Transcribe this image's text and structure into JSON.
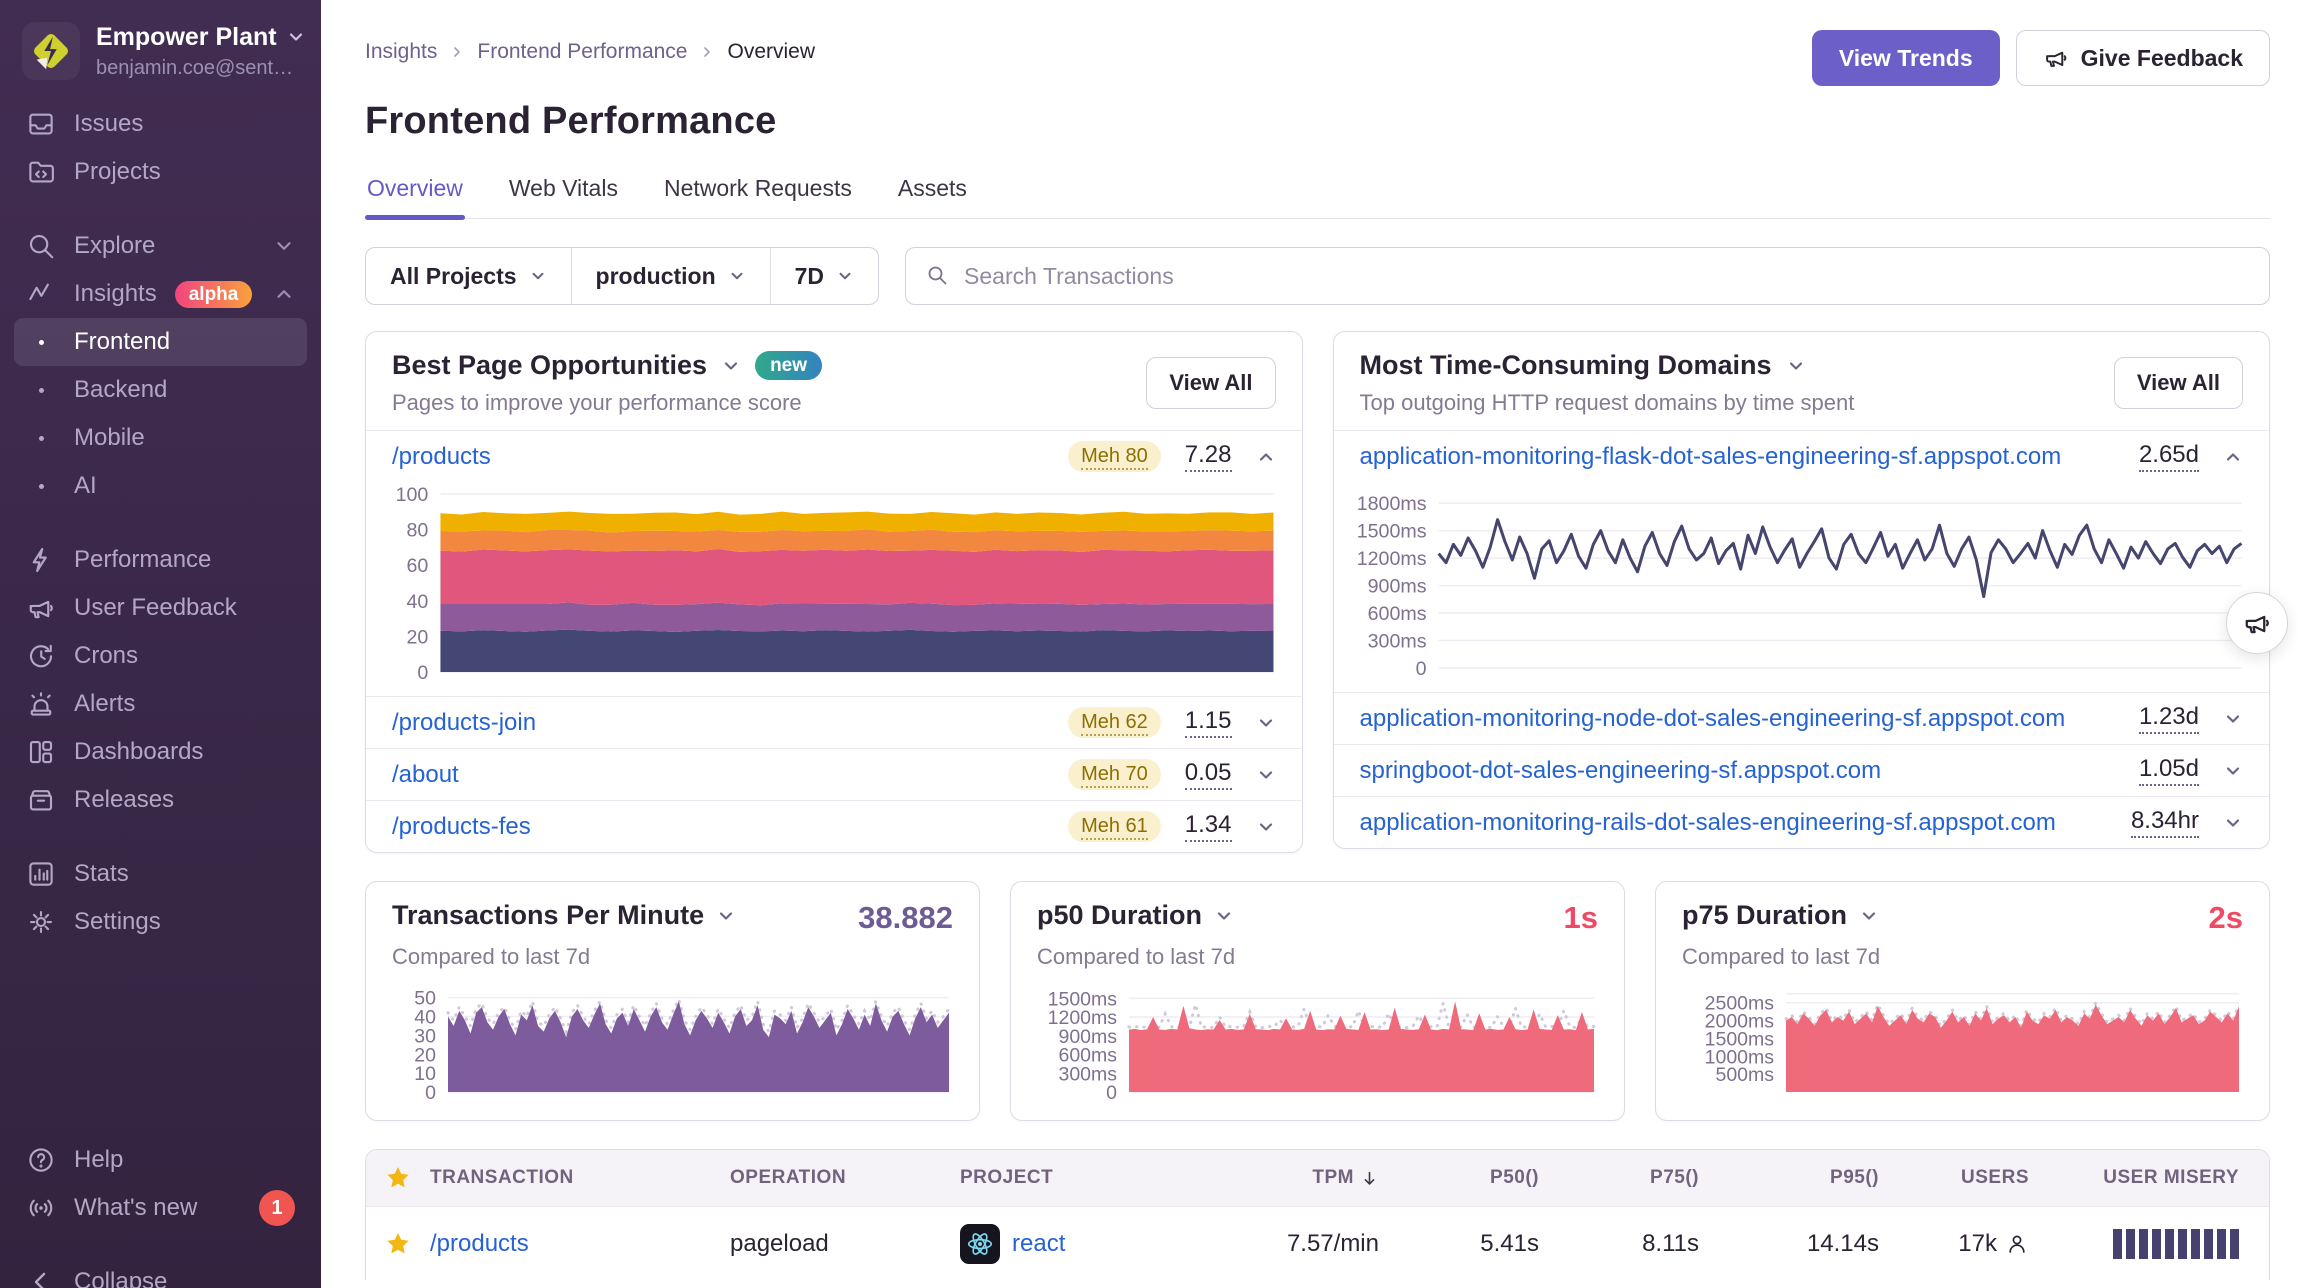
{
  "colors": {
    "accent_purple": "#6C5FC7",
    "link_blue": "#2562d4",
    "value_red": "#ef4965",
    "value_purple": "#6f5b93",
    "sidebar_bg": "#3a2a4b",
    "star_yellow": "#f2b712",
    "misery_bar": "#474170"
  },
  "sidebar": {
    "org": {
      "name": "Empower Plant",
      "email": "benjamin.coe@sent…"
    },
    "items": [
      {
        "label": "Issues"
      },
      {
        "label": "Projects"
      },
      {
        "label": "Explore"
      },
      {
        "label": "Insights",
        "badge": "alpha"
      },
      {
        "label": "Frontend"
      },
      {
        "label": "Backend"
      },
      {
        "label": "Mobile"
      },
      {
        "label": "AI"
      },
      {
        "label": "Performance"
      },
      {
        "label": "User Feedback"
      },
      {
        "label": "Crons"
      },
      {
        "label": "Alerts"
      },
      {
        "label": "Dashboards"
      },
      {
        "label": "Releases"
      },
      {
        "label": "Stats"
      },
      {
        "label": "Settings"
      }
    ],
    "footer": {
      "help": "Help",
      "whats_new": "What's new",
      "whats_new_count": "1",
      "collapse": "Collapse"
    }
  },
  "header": {
    "breadcrumb": [
      "Insights",
      "Frontend Performance",
      "Overview"
    ],
    "actions": {
      "view_trends": "View Trends",
      "give_feedback": "Give Feedback"
    },
    "title": "Frontend Performance"
  },
  "tabs": [
    {
      "label": "Overview"
    },
    {
      "label": "Web Vitals"
    },
    {
      "label": "Network Requests"
    },
    {
      "label": "Assets"
    }
  ],
  "filters": {
    "project": "All Projects",
    "environment": "production",
    "period": "7D",
    "search_placeholder": "Search Transactions"
  },
  "best_pages": {
    "title": "Best Page Opportunities",
    "badge": "new",
    "subtitle": "Pages to improve your performance score",
    "view_all": "View All",
    "rows": [
      {
        "page": "/products",
        "score_text": "Meh 80",
        "value": "7.28"
      },
      {
        "page": "/products-join",
        "score_text": "Meh 62",
        "value": "1.15"
      },
      {
        "page": "/about",
        "score_text": "Meh 70",
        "value": "0.05"
      },
      {
        "page": "/products-fes",
        "score_text": "Meh 61",
        "value": "1.34"
      }
    ]
  },
  "domains": {
    "title": "Most Time-Consuming Domains",
    "subtitle": "Top outgoing HTTP request domains by time spent",
    "view_all": "View All",
    "rows": [
      {
        "domain": "application-monitoring-flask-dot-sales-engineering-sf.appspot.com",
        "value": "2.65d"
      },
      {
        "domain": "application-monitoring-node-dot-sales-engineering-sf.appspot.com",
        "value": "1.23d"
      },
      {
        "domain": "springboot-dot-sales-engineering-sf.appspot.com",
        "value": "1.05d"
      },
      {
        "domain": "application-monitoring-rails-dot-sales-engineering-sf.appspot.com",
        "value": "8.34hr"
      }
    ]
  },
  "metrics": [
    {
      "title": "Transactions Per Minute",
      "value": "38.882",
      "subtitle": "Compared to last 7d"
    },
    {
      "title": "p50 Duration",
      "value": "1s",
      "subtitle": "Compared to last 7d"
    },
    {
      "title": "p75 Duration",
      "value": "2s",
      "subtitle": "Compared to last 7d"
    }
  ],
  "table": {
    "columns": {
      "transaction": "TRANSACTION",
      "operation": "OPERATION",
      "project": "PROJECT",
      "tpm": "TPM",
      "p50": "P50()",
      "p75": "P75()",
      "p95": "P95()",
      "users": "USERS",
      "user_misery": "USER MISERY"
    },
    "rows": [
      {
        "transaction": "/products",
        "operation": "pageload",
        "project": "react",
        "tpm": "7.57/min",
        "p50": "5.41s",
        "p75": "8.11s",
        "p95": "14.14s",
        "users": "17k",
        "misery_bars": 10
      }
    ]
  },
  "chart_data": {
    "page_score_stacked": {
      "type": "area",
      "stacked": true,
      "ylim": [
        0,
        100
      ],
      "yticks": [
        [
          0,
          "0"
        ],
        [
          20,
          "20"
        ],
        [
          40,
          "40"
        ],
        [
          60,
          "60"
        ],
        [
          80,
          "80"
        ],
        [
          100,
          "100"
        ]
      ],
      "series": [
        {
          "name": "band-1",
          "color": "#444674",
          "values": [
            23.2,
            22.8,
            23.5,
            23.0,
            22.6,
            23.3,
            23.8,
            23.1,
            22.7,
            23.4,
            23.0,
            22.5,
            23.2,
            23.6,
            23.0,
            22.8,
            23.3,
            22.9,
            23.5,
            23.1,
            22.7,
            23.2,
            23.7,
            23.0,
            22.6,
            23.1,
            23.4,
            22.9,
            23.3,
            23.0,
            22.7,
            23.5,
            23.1,
            22.8,
            23.4,
            23.0,
            23.3,
            22.9,
            23.2,
            23.0
          ]
        },
        {
          "name": "band-2",
          "color": "#8e5a9a",
          "values": [
            15.0,
            15.4,
            14.7,
            15.2,
            15.6,
            14.9,
            15.3,
            14.6,
            15.1,
            15.5,
            14.8,
            15.2,
            14.9,
            15.4,
            15.0,
            14.7,
            15.3,
            15.6,
            14.9,
            15.2,
            15.5,
            14.8,
            15.1,
            15.4,
            15.0,
            14.6,
            15.2,
            15.5,
            14.9,
            15.3,
            15.0,
            14.7,
            15.4,
            15.1,
            14.8,
            15.3,
            15.0,
            15.4,
            14.9,
            15.2
          ]
        },
        {
          "name": "band-3",
          "color": "#e1567c",
          "values": [
            30.0,
            29.4,
            30.6,
            30.1,
            29.6,
            30.3,
            29.8,
            30.5,
            29.9,
            29.3,
            30.2,
            30.7,
            29.7,
            30.1,
            29.5,
            30.4,
            30.0,
            29.6,
            30.3,
            29.8,
            30.6,
            30.0,
            29.4,
            30.2,
            30.5,
            29.8,
            30.1,
            29.5,
            30.3,
            30.0,
            29.7,
            30.4,
            29.9,
            30.2,
            29.6,
            30.1,
            30.4,
            29.8,
            30.0,
            30.2
          ]
        },
        {
          "name": "band-4",
          "color": "#f2883f",
          "values": [
            11.0,
            11.4,
            10.7,
            11.1,
            10.8,
            11.3,
            10.9,
            11.2,
            10.6,
            11.0,
            11.4,
            10.8,
            11.1,
            10.7,
            11.3,
            10.9,
            11.2,
            11.0,
            10.6,
            11.1,
            11.4,
            10.8,
            11.0,
            11.3,
            10.7,
            11.1,
            10.9,
            11.2,
            10.8,
            11.0,
            11.3,
            10.7,
            11.1,
            10.9,
            11.2,
            10.8,
            11.0,
            11.3,
            10.9,
            11.1
          ]
        },
        {
          "name": "band-5",
          "color": "#efb000",
          "values": [
            10.0,
            9.5,
            10.4,
            9.8,
            10.2,
            9.6,
            10.3,
            9.9,
            10.5,
            9.7,
            10.1,
            10.4,
            9.8,
            10.2,
            9.6,
            10.0,
            10.3,
            9.7,
            10.1,
            10.5,
            9.9,
            10.2,
            9.6,
            10.0,
            10.4,
            9.8,
            10.1,
            9.7,
            10.3,
            10.0,
            9.8,
            10.2,
            10.5,
            9.9,
            10.1,
            9.7,
            10.0,
            10.3,
            9.8,
            10.1
          ]
        }
      ]
    },
    "domain_duration": {
      "type": "line",
      "color": "#46456f",
      "ylim": [
        0,
        1900
      ],
      "yticks": [
        [
          0,
          "0"
        ],
        [
          300,
          "300ms"
        ],
        [
          600,
          "600ms"
        ],
        [
          900,
          "900ms"
        ],
        [
          1200,
          "1200ms"
        ],
        [
          1500,
          "1500ms"
        ],
        [
          1800,
          "1800ms"
        ]
      ],
      "values": [
        1250,
        1150,
        1350,
        1230,
        1420,
        1280,
        1100,
        1320,
        1620,
        1380,
        1180,
        1430,
        1250,
        980,
        1300,
        1390,
        1150,
        1280,
        1460,
        1220,
        1090,
        1350,
        1500,
        1280,
        1150,
        1400,
        1200,
        1050,
        1330,
        1480,
        1250,
        1120,
        1380,
        1550,
        1300,
        1180,
        1250,
        1420,
        1140,
        1280,
        1360,
        1080,
        1450,
        1250,
        1540,
        1320,
        1150,
        1290,
        1410,
        1100,
        1250,
        1380,
        1520,
        1200,
        1080,
        1350,
        1460,
        1250,
        1150,
        1310,
        1480,
        1220,
        1350,
        1090,
        1250,
        1400,
        1180,
        1300,
        1560,
        1250,
        1110,
        1300,
        1430,
        1180,
        780,
        1260,
        1400,
        1300,
        1150,
        1250,
        1360,
        1200,
        1500,
        1280,
        1100,
        1350,
        1240,
        1450,
        1560,
        1300,
        1150,
        1400,
        1250,
        1090,
        1320,
        1200,
        1380,
        1250,
        1140,
        1300,
        1360,
        1210,
        1100,
        1280,
        1350,
        1250,
        1330,
        1150,
        1300,
        1360
      ]
    },
    "tpm": {
      "type": "area",
      "color": "#7d5b9d",
      "ylim": [
        0,
        53
      ],
      "yticks": [
        [
          0,
          "0"
        ],
        [
          10,
          "10"
        ],
        [
          20,
          "20"
        ],
        [
          30,
          "30"
        ],
        [
          40,
          "40"
        ],
        [
          50,
          "50"
        ]
      ],
      "values": [
        40,
        35,
        43,
        38,
        31,
        42,
        45,
        37,
        33,
        40,
        44,
        36,
        30,
        41,
        38,
        46,
        35,
        32,
        39,
        43,
        37,
        29,
        40,
        44,
        38,
        34,
        41,
        47,
        36,
        31,
        39,
        42,
        35,
        44,
        38,
        32,
        40,
        45,
        37,
        33,
        41,
        48,
        36,
        30,
        38,
        43,
        39,
        34,
        42,
        37,
        31,
        40,
        44,
        35,
        38,
        46,
        33,
        29,
        41,
        39,
        36,
        43,
        31,
        37,
        45,
        40,
        34,
        38,
        42,
        30,
        36,
        44,
        39,
        33,
        41,
        35,
        47,
        38,
        32,
        40,
        43,
        36,
        30,
        39,
        45,
        37,
        41,
        34,
        38,
        42
      ],
      "prev_values": [
        42,
        38,
        45,
        40,
        35,
        44,
        47,
        39,
        36,
        42,
        45,
        38,
        33,
        43,
        40,
        48,
        37,
        35,
        41,
        45,
        39,
        32,
        42,
        46,
        40,
        36,
        43,
        48,
        38,
        34,
        41,
        44,
        37,
        46,
        40,
        35,
        42,
        47,
        39,
        36,
        43,
        49,
        38,
        33,
        40,
        45,
        41,
        36,
        44,
        39,
        34,
        42,
        46,
        38,
        40,
        48,
        36,
        32,
        43,
        41,
        38,
        45,
        34,
        39,
        47,
        42,
        37,
        40,
        44,
        33,
        38,
        46,
        41,
        36,
        43,
        38,
        48,
        40,
        35,
        42,
        45,
        38,
        33,
        41,
        47,
        39,
        43,
        37,
        40,
        44
      ]
    },
    "p50": {
      "type": "area",
      "color": "#ef6a7b",
      "ylim": [
        0,
        1600
      ],
      "yticks": [
        [
          0,
          "0"
        ],
        [
          300,
          "300ms"
        ],
        [
          600,
          "600ms"
        ],
        [
          900,
          "900ms"
        ],
        [
          1200,
          "1200ms"
        ],
        [
          1500,
          "1500ms"
        ]
      ],
      "values": [
        1000,
        1010,
        990,
        1005,
        1200,
        1000,
        995,
        1010,
        1000,
        1380,
        1020,
        1000,
        990,
        1005,
        1000,
        1150,
        1000,
        1010,
        995,
        1000,
        1250,
        1005,
        1000,
        990,
        1010,
        1000,
        1180,
        1000,
        995,
        1010,
        1300,
        1000,
        990,
        1005,
        1000,
        1220,
        1010,
        1000,
        995,
        1280,
        1000,
        1005,
        990,
        1000,
        1350,
        1010,
        1000,
        995,
        1005,
        1240,
        1000,
        990,
        1010,
        1000,
        1450,
        1005,
        1000,
        990,
        1260,
        1000,
        1010,
        995,
        1000,
        1200,
        1005,
        990,
        1000,
        1320,
        1010,
        1000,
        995,
        1230,
        1000,
        1005,
        990,
        1280,
        1000,
        1010
      ],
      "prev_values": [
        1040,
        1050,
        1030,
        1045,
        1060,
        1035,
        1250,
        1045,
        1030,
        1050,
        1040,
        1400,
        1035,
        1045,
        1030,
        1200,
        1040,
        1050,
        1035,
        1045,
        1280,
        1040,
        1030,
        1050,
        1045,
        1150,
        1035,
        1040,
        1050,
        1330,
        1030,
        1045,
        1040,
        1230,
        1050,
        1035,
        1045,
        1040,
        1300,
        1030,
        1050,
        1040,
        1035,
        1260,
        1045,
        1040,
        1030,
        1050,
        1220,
        1035,
        1045,
        1040,
        1420,
        1030,
        1050,
        1040,
        1240,
        1035,
        1045,
        1040,
        1030,
        1210,
        1050,
        1040,
        1340,
        1035,
        1045,
        1030,
        1250,
        1040,
        1050,
        1035,
        1300,
        1045,
        1030,
        1190,
        1040,
        1050
      ]
    },
    "p75": {
      "type": "area",
      "color": "#ef6a7b",
      "ylim": [
        0,
        2800
      ],
      "yticks": [
        [
          500,
          "500ms"
        ],
        [
          1000,
          "1000ms"
        ],
        [
          1500,
          "1500ms"
        ],
        [
          2000,
          "2000ms"
        ],
        [
          2500,
          "2500ms"
        ],
        [
          2750,
          ""
        ]
      ],
      "values": [
        2000,
        2100,
        1900,
        2200,
        2050,
        1850,
        2150,
        2300,
        1950,
        2100,
        2000,
        2250,
        1900,
        2050,
        2200,
        1950,
        2400,
        2100,
        1850,
        2000,
        2150,
        1900,
        2300,
        2050,
        1950,
        2200,
        2100,
        1800,
        2000,
        2250,
        1950,
        2100,
        1850,
        2200,
        2000,
        2350,
        1900,
        2050,
        2150,
        1950,
        2100,
        1800,
        2250,
        2000,
        1900,
        2150,
        2050,
        2300,
        1950,
        2100,
        2000,
        1850,
        2200,
        2050,
        2450,
        2150,
        1900,
        2000,
        2100,
        1950,
        2300,
        2050,
        1850,
        2150,
        2000,
        2200,
        1900,
        2100,
        2350,
        1950,
        2050,
        2150,
        1900,
        2000,
        2250,
        2100,
        1950,
        2200,
        2000,
        2400
      ],
      "prev_values": [
        2050,
        2150,
        1950,
        2250,
        2100,
        1900,
        2200,
        2350,
        2000,
        2150,
        2050,
        2300,
        1950,
        2100,
        2250,
        2000,
        2450,
        2150,
        1900,
        2050,
        2200,
        1950,
        2350,
        2100,
        2000,
        2250,
        2150,
        1850,
        2050,
        2300,
        2000,
        2150,
        1900,
        2250,
        2050,
        2400,
        1950,
        2100,
        2200,
        2000,
        2150,
        1850,
        2300,
        2050,
        1950,
        2200,
        2100,
        2350,
        2000,
        2150,
        2050,
        1900,
        2250,
        2100,
        2500,
        2200,
        1950,
        2050,
        2150,
        2000,
        2350,
        2100,
        1900,
        2200,
        2050,
        2250,
        1950,
        2150,
        2400,
        2000,
        2100,
        2200,
        1950,
        2050,
        2300,
        2150,
        2000,
        2250,
        2050,
        2450
      ]
    }
  }
}
